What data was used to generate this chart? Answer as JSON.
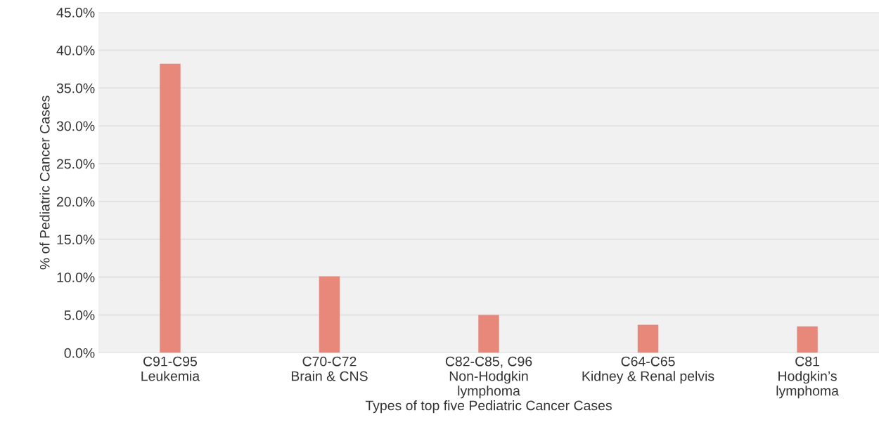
{
  "chart_data": {
    "type": "bar",
    "categories": [
      "C91-C95\nLeukemia",
      "C70-C72\nBrain & CNS",
      "C82-C85, C96\nNon-Hodgkin\nlymphoma",
      "C64-C65\nKidney & Renal pelvis",
      "C81\nHodgkin’s\nlymphoma"
    ],
    "values": [
      38.2,
      10.1,
      5.0,
      3.7,
      3.5
    ],
    "color": "#e8887a",
    "xlabel": "Types of top five Pediatric Cancer Cases",
    "ylabel": "% of Pediatric Cancer Cases",
    "ylim": [
      0,
      45
    ],
    "yticks": [
      {
        "value": 0,
        "label": "0.0%"
      },
      {
        "value": 5,
        "label": "5.0%"
      },
      {
        "value": 10,
        "label": "10.0%"
      },
      {
        "value": 15,
        "label": "15.0%"
      },
      {
        "value": 20,
        "label": "20.0%"
      },
      {
        "value": 25,
        "label": "25.0%"
      },
      {
        "value": 30,
        "label": "30.0%"
      },
      {
        "value": 35,
        "label": "35.0%"
      },
      {
        "value": 40,
        "label": "40.0%"
      },
      {
        "value": 45,
        "label": "45.0%"
      }
    ],
    "grid": "y"
  }
}
